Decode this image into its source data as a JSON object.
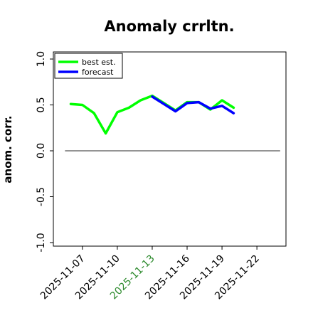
{
  "chart_data": {
    "type": "line",
    "title": "Anomaly crrltn.",
    "ylabel": "anom. corr.",
    "xlabel": "",
    "ylim": [
      -1.0,
      1.0
    ],
    "xlim": [
      "2025-11-04T12:00",
      "2025-11-24T12:00"
    ],
    "yticks": [
      "-1.0",
      "-0.5",
      "0.0",
      "0.5",
      "1.0"
    ],
    "ytick_values": [
      -1.0,
      -0.5,
      0.0,
      0.5,
      1.0
    ],
    "xticks": [
      {
        "label": "2025-11-07",
        "date": "2025-11-07",
        "color": "#000000"
      },
      {
        "label": "2025-11-10",
        "date": "2025-11-10",
        "color": "#000000"
      },
      {
        "label": "2025-11-13",
        "date": "2025-11-13",
        "color": "#2e8b2e"
      },
      {
        "label": "2025-11-16",
        "date": "2025-11-16",
        "color": "#000000"
      },
      {
        "label": "2025-11-19",
        "date": "2025-11-19",
        "color": "#000000"
      },
      {
        "label": "2025-11-22",
        "date": "2025-11-22",
        "color": "#000000"
      }
    ],
    "zero_line": 0.0,
    "legend_position": "top-left",
    "grid": false,
    "series": [
      {
        "name": "best est.",
        "color": "#00ff00",
        "points": [
          [
            "2025-11-06",
            0.51
          ],
          [
            "2025-11-07",
            0.5
          ],
          [
            "2025-11-08",
            0.41
          ],
          [
            "2025-11-09",
            0.19
          ],
          [
            "2025-11-10",
            0.42
          ],
          [
            "2025-11-11",
            0.47
          ],
          [
            "2025-11-12",
            0.55
          ],
          [
            "2025-11-13",
            0.6
          ],
          [
            "2025-11-14",
            0.52
          ],
          [
            "2025-11-15",
            0.44
          ],
          [
            "2025-11-16",
            0.53
          ],
          [
            "2025-11-17",
            0.53
          ],
          [
            "2025-11-18",
            0.45
          ],
          [
            "2025-11-19",
            0.55
          ],
          [
            "2025-11-20",
            0.47
          ]
        ]
      },
      {
        "name": "forecast",
        "color": "#0000ff",
        "points": [
          [
            "2025-11-13",
            0.59
          ],
          [
            "2025-11-14",
            0.51
          ],
          [
            "2025-11-15",
            0.43
          ],
          [
            "2025-11-16",
            0.52
          ],
          [
            "2025-11-17",
            0.53
          ],
          [
            "2025-11-18",
            0.46
          ],
          [
            "2025-11-19",
            0.49
          ],
          [
            "2025-11-20",
            0.41
          ]
        ]
      }
    ]
  }
}
